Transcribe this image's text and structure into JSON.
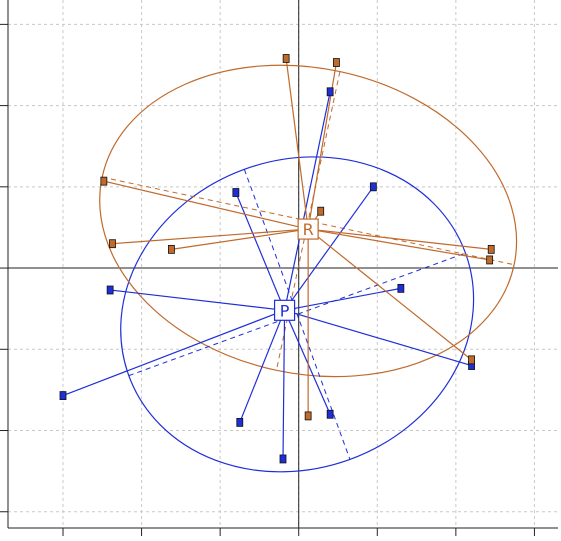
{
  "chart_data": {
    "type": "scatter",
    "title": "",
    "xlabel": "",
    "ylabel": "",
    "xlim": [
      -3.7,
      3.3
    ],
    "ylim": [
      -3.2,
      3.3
    ],
    "grid": true,
    "series": [
      {
        "name": "P",
        "color": "#1f2fd8",
        "centroid": {
          "label": "P",
          "x": -0.18,
          "y": -0.52
        },
        "points": [
          {
            "label": "",
            "x": -0.8,
            "y": 0.93
          },
          {
            "label": "",
            "x": 0.95,
            "y": 1.0
          },
          {
            "label": "",
            "x": 0.4,
            "y": 2.17
          },
          {
            "label": "",
            "x": -2.4,
            "y": -0.27
          },
          {
            "label": "",
            "x": 1.3,
            "y": -0.25
          },
          {
            "label": "",
            "x": -3.0,
            "y": -1.57
          },
          {
            "label": "",
            "x": 2.2,
            "y": -1.2
          },
          {
            "label": "",
            "x": -0.75,
            "y": -1.9
          },
          {
            "label": "",
            "x": 0.4,
            "y": -1.8
          },
          {
            "label": "",
            "x": -0.2,
            "y": -2.35
          }
        ],
        "ellipse": {
          "cx": -0.02,
          "cy": -0.57,
          "rx": 2.28,
          "ry": 1.9,
          "angle_deg": 20
        }
      },
      {
        "name": "R",
        "color": "#c06a2c",
        "centroid": {
          "label": "R",
          "x": 0.12,
          "y": 0.48
        },
        "points": [
          {
            "label": "",
            "x": -0.16,
            "y": 2.58
          },
          {
            "label": "",
            "x": 0.48,
            "y": 2.53
          },
          {
            "label": "",
            "x": -2.48,
            "y": 1.07
          },
          {
            "label": "",
            "x": -2.37,
            "y": 0.3
          },
          {
            "label": "",
            "x": -1.62,
            "y": 0.23
          },
          {
            "label": "",
            "x": 0.28,
            "y": 0.7
          },
          {
            "label": "",
            "x": 2.45,
            "y": 0.23
          },
          {
            "label": "",
            "x": 2.43,
            "y": 0.1
          },
          {
            "label": "",
            "x": 2.2,
            "y": -1.13
          },
          {
            "label": "",
            "x": 0.12,
            "y": -1.82
          }
        ],
        "ellipse": {
          "cx": 0.12,
          "cy": 0.58,
          "rx": 2.68,
          "ry": 1.88,
          "angle_deg": -12
        }
      }
    ],
    "axes_lines": {
      "x": 0,
      "y": 0
    }
  }
}
